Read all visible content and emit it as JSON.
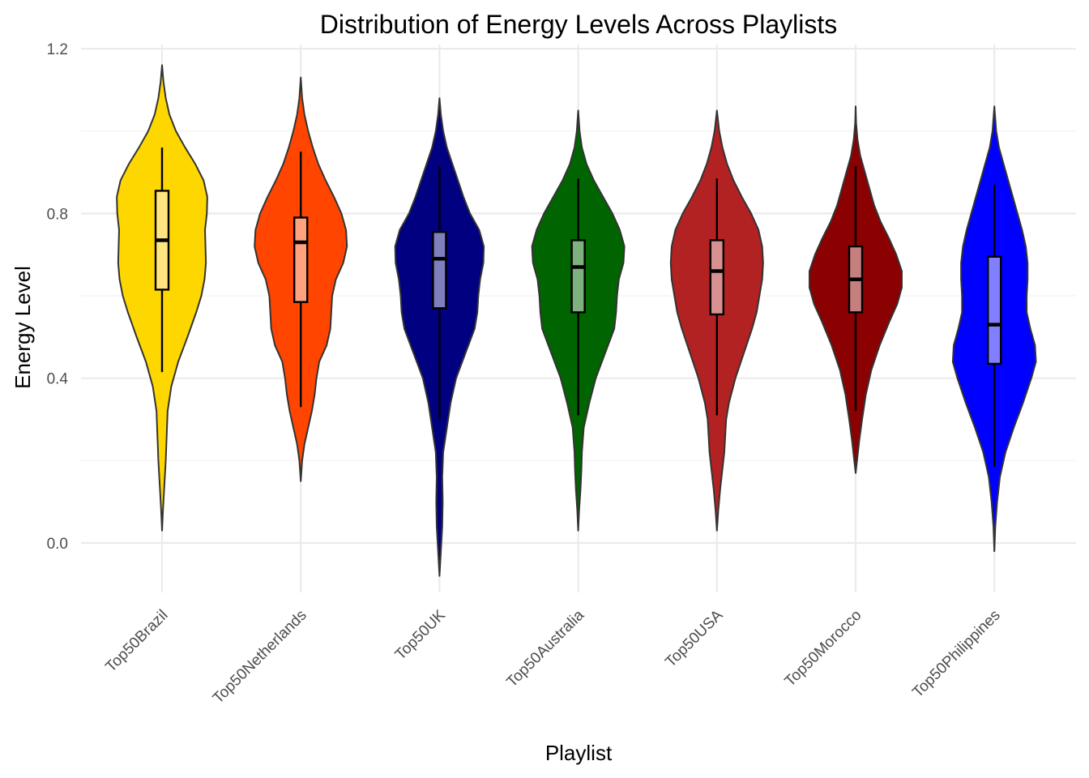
{
  "chart_data": {
    "type": "violin",
    "title": "Distribution of Energy Levels Across Playlists",
    "xlabel": "Playlist",
    "ylabel": "Energy Level",
    "ylim": [
      -0.12,
      1.21
    ],
    "yticks": [
      0.0,
      0.4,
      0.8,
      1.2
    ],
    "ytick_labels": [
      "0.0",
      "0.4",
      "0.8",
      "1.2"
    ],
    "grid": true,
    "legend": "none",
    "categories": [
      "Top50Brazil",
      "Top50Netherlands",
      "Top50UK",
      "Top50Australia",
      "Top50USA",
      "Top50Morocco",
      "Top50Philippines"
    ],
    "series": [
      {
        "category": "Top50Brazil",
        "fill": "#FFD700",
        "box_fill": "#FFE57F",
        "box": {
          "q1": 0.615,
          "median": 0.735,
          "q3": 0.855,
          "whisker_low": 0.415,
          "whisker_high": 0.96
        },
        "density": [
          [
            0.03,
            0.0
          ],
          [
            0.08,
            0.02
          ],
          [
            0.14,
            0.05
          ],
          [
            0.2,
            0.08
          ],
          [
            0.26,
            0.1
          ],
          [
            0.32,
            0.12
          ],
          [
            0.38,
            0.2
          ],
          [
            0.44,
            0.35
          ],
          [
            0.5,
            0.55
          ],
          [
            0.56,
            0.74
          ],
          [
            0.6,
            0.85
          ],
          [
            0.64,
            0.92
          ],
          [
            0.68,
            0.95
          ],
          [
            0.72,
            0.94
          ],
          [
            0.76,
            0.93
          ],
          [
            0.8,
            0.97
          ],
          [
            0.84,
            0.98
          ],
          [
            0.88,
            0.9
          ],
          [
            0.92,
            0.72
          ],
          [
            0.96,
            0.5
          ],
          [
            1.0,
            0.3
          ],
          [
            1.04,
            0.16
          ],
          [
            1.08,
            0.08
          ],
          [
            1.12,
            0.03
          ],
          [
            1.16,
            0.0
          ]
        ]
      },
      {
        "category": "Top50Netherlands",
        "fill": "#FF4500",
        "box_fill": "#FFA27F",
        "box": {
          "q1": 0.585,
          "median": 0.73,
          "q3": 0.79,
          "whisker_low": 0.33,
          "whisker_high": 0.95
        },
        "density": [
          [
            0.15,
            0.0
          ],
          [
            0.2,
            0.03
          ],
          [
            0.24,
            0.08
          ],
          [
            0.28,
            0.16
          ],
          [
            0.32,
            0.24
          ],
          [
            0.36,
            0.3
          ],
          [
            0.4,
            0.34
          ],
          [
            0.44,
            0.4
          ],
          [
            0.48,
            0.56
          ],
          [
            0.52,
            0.64
          ],
          [
            0.56,
            0.66
          ],
          [
            0.6,
            0.68
          ],
          [
            0.64,
            0.76
          ],
          [
            0.68,
            0.92
          ],
          [
            0.72,
            1.0
          ],
          [
            0.76,
            0.98
          ],
          [
            0.8,
            0.88
          ],
          [
            0.84,
            0.72
          ],
          [
            0.88,
            0.54
          ],
          [
            0.92,
            0.38
          ],
          [
            0.96,
            0.26
          ],
          [
            1.0,
            0.16
          ],
          [
            1.04,
            0.08
          ],
          [
            1.08,
            0.03
          ],
          [
            1.13,
            0.0
          ]
        ]
      },
      {
        "category": "Top50UK",
        "fill": "#000080",
        "box_fill": "#7F7FC0",
        "box": {
          "q1": 0.57,
          "median": 0.69,
          "q3": 0.755,
          "whisker_low": 0.3,
          "whisker_high": 0.915
        },
        "density": [
          [
            -0.08,
            0.0
          ],
          [
            -0.02,
            0.03
          ],
          [
            0.04,
            0.06
          ],
          [
            0.1,
            0.07
          ],
          [
            0.16,
            0.06
          ],
          [
            0.22,
            0.08
          ],
          [
            0.28,
            0.16
          ],
          [
            0.34,
            0.24
          ],
          [
            0.4,
            0.36
          ],
          [
            0.46,
            0.56
          ],
          [
            0.52,
            0.76
          ],
          [
            0.56,
            0.82
          ],
          [
            0.6,
            0.84
          ],
          [
            0.64,
            0.88
          ],
          [
            0.68,
            0.95
          ],
          [
            0.72,
            0.96
          ],
          [
            0.76,
            0.86
          ],
          [
            0.8,
            0.66
          ],
          [
            0.84,
            0.52
          ],
          [
            0.88,
            0.4
          ],
          [
            0.92,
            0.28
          ],
          [
            0.96,
            0.16
          ],
          [
            1.0,
            0.08
          ],
          [
            1.04,
            0.03
          ],
          [
            1.08,
            0.0
          ]
        ]
      },
      {
        "category": "Top50Australia",
        "fill": "#006400",
        "box_fill": "#7FB17F",
        "box": {
          "q1": 0.56,
          "median": 0.67,
          "q3": 0.735,
          "whisker_low": 0.31,
          "whisker_high": 0.885
        },
        "density": [
          [
            0.03,
            0.0
          ],
          [
            0.08,
            0.02
          ],
          [
            0.13,
            0.05
          ],
          [
            0.18,
            0.07
          ],
          [
            0.22,
            0.08
          ],
          [
            0.28,
            0.12
          ],
          [
            0.34,
            0.24
          ],
          [
            0.4,
            0.38
          ],
          [
            0.46,
            0.58
          ],
          [
            0.52,
            0.78
          ],
          [
            0.56,
            0.82
          ],
          [
            0.6,
            0.84
          ],
          [
            0.64,
            0.88
          ],
          [
            0.68,
            0.98
          ],
          [
            0.72,
            1.0
          ],
          [
            0.76,
            0.9
          ],
          [
            0.8,
            0.74
          ],
          [
            0.84,
            0.54
          ],
          [
            0.88,
            0.34
          ],
          [
            0.92,
            0.18
          ],
          [
            0.96,
            0.08
          ],
          [
            1.0,
            0.03
          ],
          [
            1.05,
            0.0
          ]
        ]
      },
      {
        "category": "Top50USA",
        "fill": "#B22222",
        "box_fill": "#D89090",
        "box": {
          "q1": 0.555,
          "median": 0.66,
          "q3": 0.735,
          "whisker_low": 0.31,
          "whisker_high": 0.885
        },
        "density": [
          [
            0.03,
            0.0
          ],
          [
            0.08,
            0.03
          ],
          [
            0.13,
            0.07
          ],
          [
            0.18,
            0.12
          ],
          [
            0.22,
            0.16
          ],
          [
            0.26,
            0.18
          ],
          [
            0.3,
            0.2
          ],
          [
            0.34,
            0.26
          ],
          [
            0.4,
            0.4
          ],
          [
            0.46,
            0.58
          ],
          [
            0.52,
            0.76
          ],
          [
            0.56,
            0.86
          ],
          [
            0.6,
            0.92
          ],
          [
            0.64,
            0.98
          ],
          [
            0.68,
            1.0
          ],
          [
            0.72,
            0.98
          ],
          [
            0.76,
            0.9
          ],
          [
            0.8,
            0.74
          ],
          [
            0.84,
            0.54
          ],
          [
            0.88,
            0.36
          ],
          [
            0.92,
            0.22
          ],
          [
            0.96,
            0.12
          ],
          [
            1.0,
            0.05
          ],
          [
            1.05,
            0.0
          ]
        ]
      },
      {
        "category": "Top50Morocco",
        "fill": "#8B0000",
        "box_fill": "#C57F7F",
        "box": {
          "q1": 0.56,
          "median": 0.64,
          "q3": 0.72,
          "whisker_low": 0.32,
          "whisker_high": 0.915
        },
        "density": [
          [
            0.17,
            0.0
          ],
          [
            0.21,
            0.04
          ],
          [
            0.25,
            0.08
          ],
          [
            0.3,
            0.14
          ],
          [
            0.36,
            0.22
          ],
          [
            0.42,
            0.34
          ],
          [
            0.48,
            0.52
          ],
          [
            0.54,
            0.74
          ],
          [
            0.58,
            0.9
          ],
          [
            0.62,
            1.0
          ],
          [
            0.66,
            1.0
          ],
          [
            0.7,
            0.88
          ],
          [
            0.74,
            0.72
          ],
          [
            0.78,
            0.54
          ],
          [
            0.82,
            0.4
          ],
          [
            0.86,
            0.3
          ],
          [
            0.9,
            0.2
          ],
          [
            0.94,
            0.1
          ],
          [
            0.98,
            0.04
          ],
          [
            1.02,
            0.01
          ],
          [
            1.06,
            0.0
          ]
        ]
      },
      {
        "category": "Top50Philippines",
        "fill": "#0000FF",
        "box_fill": "#7F7FFF",
        "box": {
          "q1": 0.435,
          "median": 0.53,
          "q3": 0.695,
          "whisker_low": 0.185,
          "whisker_high": 0.87
        },
        "density": [
          [
            -0.02,
            0.0
          ],
          [
            0.04,
            0.02
          ],
          [
            0.1,
            0.06
          ],
          [
            0.16,
            0.12
          ],
          [
            0.22,
            0.24
          ],
          [
            0.28,
            0.42
          ],
          [
            0.34,
            0.62
          ],
          [
            0.4,
            0.8
          ],
          [
            0.44,
            0.9
          ],
          [
            0.48,
            0.88
          ],
          [
            0.52,
            0.78
          ],
          [
            0.56,
            0.7
          ],
          [
            0.6,
            0.7
          ],
          [
            0.64,
            0.72
          ],
          [
            0.68,
            0.72
          ],
          [
            0.72,
            0.68
          ],
          [
            0.76,
            0.6
          ],
          [
            0.8,
            0.5
          ],
          [
            0.84,
            0.4
          ],
          [
            0.88,
            0.3
          ],
          [
            0.92,
            0.2
          ],
          [
            0.96,
            0.1
          ],
          [
            1.0,
            0.04
          ],
          [
            1.06,
            0.0
          ]
        ]
      }
    ]
  }
}
